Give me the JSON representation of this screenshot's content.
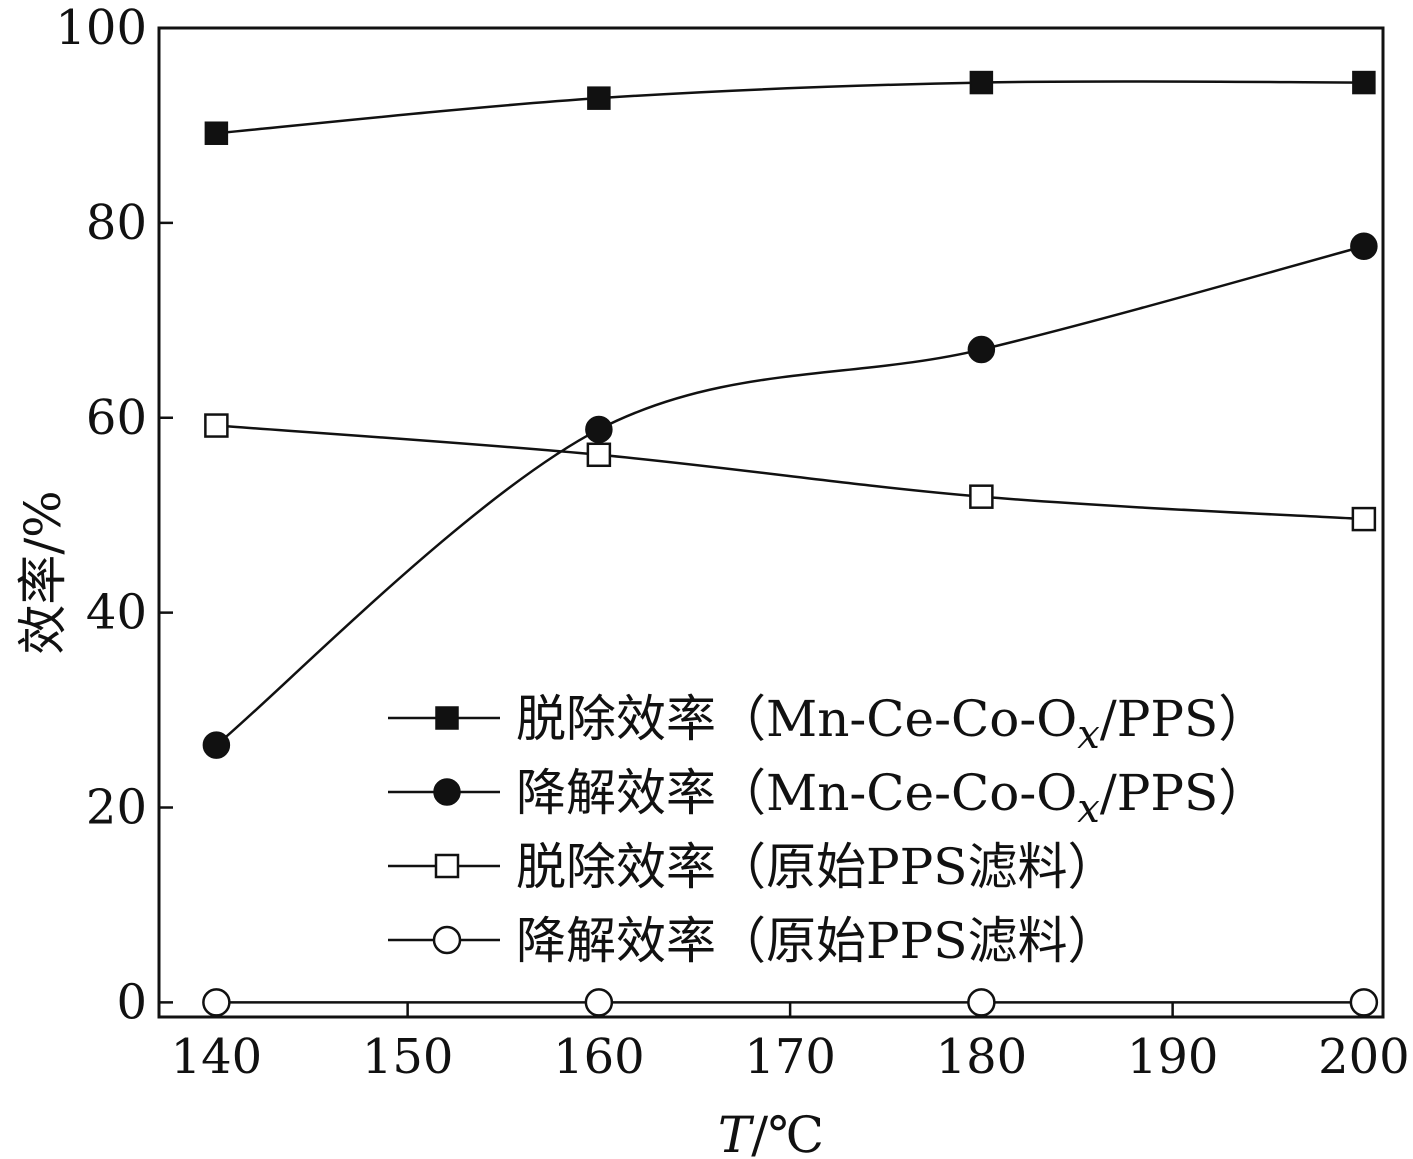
{
  "chart_data": {
    "type": "line",
    "xlabel": "T/℃",
    "xlabel_italic": "T",
    "xlabel_rest": "/℃",
    "ylabel": "效率/%",
    "xlim": [
      137,
      201
    ],
    "ylim": [
      -1.5,
      100
    ],
    "xticks": [
      140,
      150,
      160,
      170,
      180,
      190,
      200
    ],
    "yticks": [
      0,
      20,
      40,
      60,
      80,
      100
    ],
    "grid": false,
    "legend_position": "bottom-right",
    "series": [
      {
        "name": "脱除效率（Mn-Ce-Co-Ox/PPS）",
        "legend_parts": {
          "main": "脱除效率（Mn-Ce-Co-O",
          "sub": "x",
          "tail": "/PPS）"
        },
        "marker": "filled-square",
        "x": [
          140,
          160,
          180,
          200
        ],
        "y": [
          89.2,
          92.8,
          94.4,
          94.4
        ]
      },
      {
        "name": "降解效率（Mn-Ce-Co-Ox/PPS）",
        "legend_parts": {
          "main": "降解效率（Mn-Ce-Co-O",
          "sub": "x",
          "tail": "/PPS）"
        },
        "marker": "filled-circle",
        "x": [
          140,
          160,
          180,
          200
        ],
        "y": [
          26.4,
          58.8,
          67.0,
          77.6
        ]
      },
      {
        "name": "脱除效率（原始PPS滤料）",
        "legend_parts": {
          "main": "脱除效率（原始PPS滤料）",
          "sub": "",
          "tail": ""
        },
        "marker": "open-square",
        "x": [
          140,
          160,
          180,
          200
        ],
        "y": [
          59.2,
          56.2,
          51.9,
          49.6
        ]
      },
      {
        "name": "降解效率（原始PPS滤料）",
        "legend_parts": {
          "main": "降解效率（原始PPS滤料）",
          "sub": "",
          "tail": ""
        },
        "marker": "open-circle",
        "x": [
          140,
          160,
          180,
          200
        ],
        "y": [
          0,
          0,
          0,
          0
        ]
      }
    ],
    "colors": {
      "line": "#111111",
      "fill": "#111111",
      "background": "#ffffff"
    }
  }
}
